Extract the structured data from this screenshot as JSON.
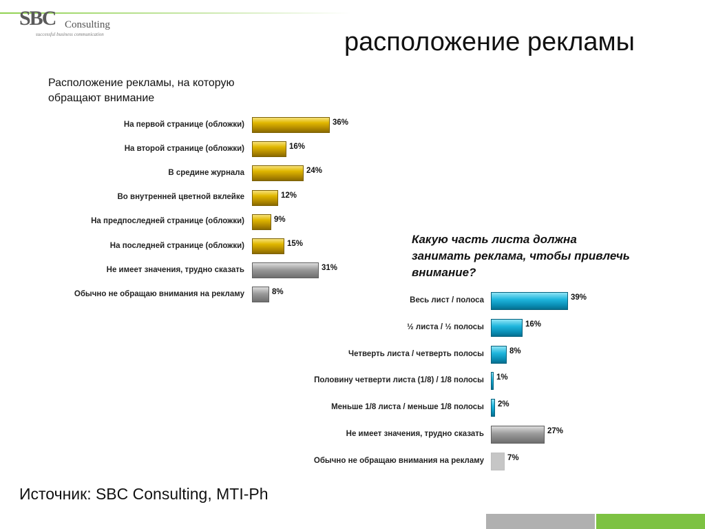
{
  "header": {
    "logo_mark": "SBC",
    "logo_name": "Consulting",
    "logo_tagline": "successful business communication",
    "title": "расположение рекламы"
  },
  "source": "Источник: SBC Consulting, MTI-Ph",
  "colors": {
    "gold": "#d4aa00",
    "grey": "#8c8c8c",
    "cyan": "#1fb6dd",
    "light_grey": "#c6c6c6",
    "footer_grey": "#b0b0b0",
    "footer_green": "#7dc242"
  },
  "chart_data": [
    {
      "type": "bar",
      "orientation": "horizontal",
      "title": "Расположение рекламы, на которую обращают внимание",
      "title_lines": [
        "Расположение рекламы, на которую",
        "обращают внимание"
      ],
      "categories": [
        "На первой странице (обложки)",
        "На второй странице (обложки)",
        "В средине журнала",
        "Во внутренней цветной вклейке",
        "На предпоследней странице (обложки)",
        "На последней странице (обложки)",
        "Не имеет значения, трудно сказать",
        "Обычно не обращаю внимания на рекламу"
      ],
      "values": [
        36,
        16,
        24,
        12,
        9,
        15,
        31,
        8
      ],
      "value_labels": [
        "36%",
        "16%",
        "24%",
        "12%",
        "9%",
        "15%",
        "31%",
        "8%"
      ],
      "colors": [
        "gold",
        "gold",
        "gold",
        "gold",
        "gold",
        "gold",
        "grey",
        "grey"
      ],
      "unit": "%",
      "xlim": [
        0,
        36
      ]
    },
    {
      "type": "bar",
      "orientation": "horizontal",
      "title": "Какую часть листа должна занимать реклама, чтобы привлечь внимание?",
      "title_lines": [
        "Какую часть листа должна",
        "занимать реклама, чтобы привлечь",
        "внимание?"
      ],
      "categories": [
        "Весь лист / полоса",
        "½ листа / ½ полосы",
        "Четверть листа / четверть полосы",
        "Половину четверти листа (1/8) / 1/8 полосы",
        "Меньше 1/8 листа / меньше 1/8 полосы",
        "Не имеет значения, трудно сказать",
        "Обычно не обращаю внимания на рекламу"
      ],
      "values": [
        39,
        16,
        8,
        1,
        2,
        27,
        7
      ],
      "value_labels": [
        "39%",
        "16%",
        "8%",
        "1%",
        "2%",
        "27%",
        "7%"
      ],
      "colors": [
        "cyan",
        "cyan",
        "cyan",
        "cyan",
        "cyan",
        "grey",
        "light_grey"
      ],
      "unit": "%",
      "xlim": [
        0,
        39
      ]
    }
  ]
}
